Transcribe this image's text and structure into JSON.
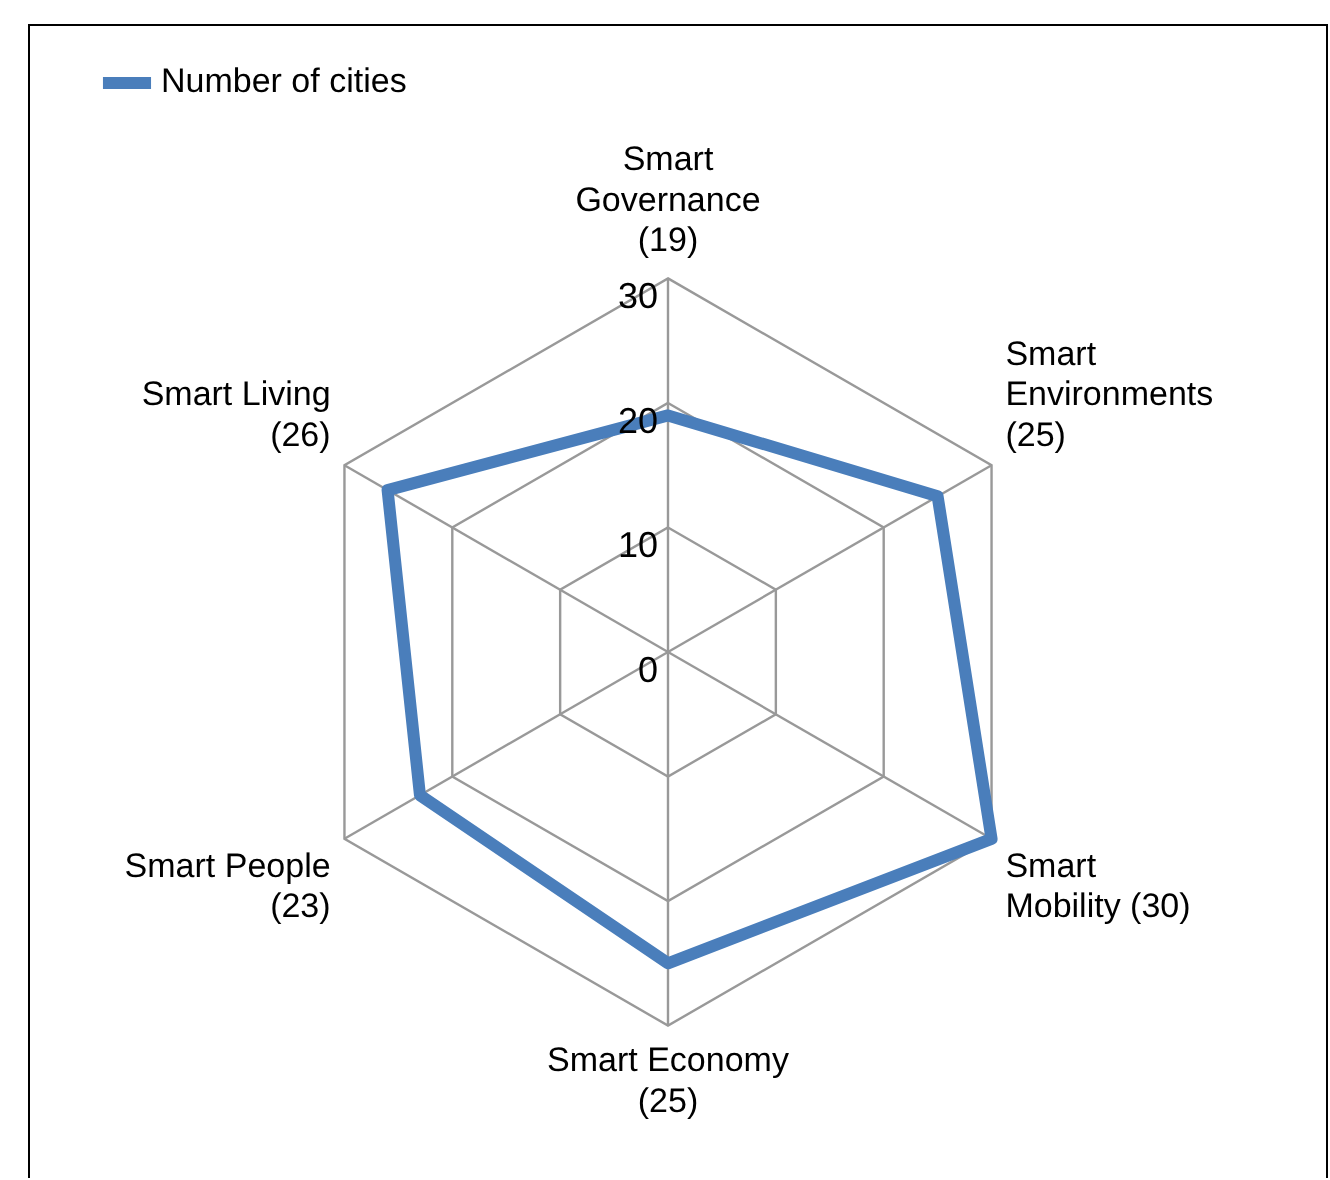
{
  "chart_data": {
    "type": "radar",
    "categories": [
      "Smart Governance (19)",
      "Smart Environments (25)",
      "Smart Mobility (30)",
      "Smart Economy (25)",
      "Smart People (23)",
      "Smart Living (26)"
    ],
    "series": [
      {
        "name": "Number of cities",
        "color": "#4a7ebb",
        "values": [
          19,
          25,
          30,
          25,
          23,
          26
        ]
      }
    ],
    "ylim": [
      0,
      30
    ],
    "yticks": [
      0,
      10,
      20,
      30
    ],
    "grid": true,
    "legend": "top left",
    "marker": "none",
    "line_style": "solid"
  }
}
